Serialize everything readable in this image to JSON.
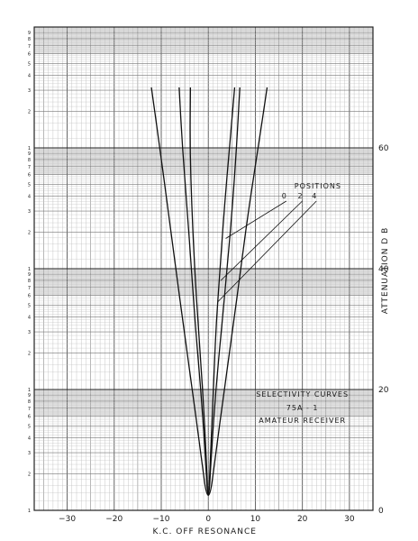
{
  "chart_data": {
    "type": "line",
    "title_lines": [
      "SELECTIVITY    CURVES",
      "75A - 1",
      "AMATEUR      RECEIVER"
    ],
    "xlabel": "K.C.   OFF    RESONANCE",
    "ylabel": "ATTENUATION      D B",
    "xlim": [
      -37,
      35
    ],
    "ylim": [
      0,
      60
    ],
    "x_ticks": [
      -30,
      -20,
      -10,
      0,
      10,
      20,
      30
    ],
    "x_tick_labels": [
      "−30",
      "−20",
      "−10",
      "0",
      "10",
      "20",
      "30"
    ],
    "y_ticks": [
      0,
      20,
      40,
      60
    ],
    "y_tick_labels": [
      "0",
      "20",
      "40",
      "60"
    ],
    "decade_labels": [
      "1",
      "2",
      "3",
      "4",
      "5",
      "6",
      "7",
      "8",
      "9"
    ],
    "grid": true,
    "legend_title": "POSITIONS",
    "series": [
      {
        "name": "0",
        "points": [
          [
            -3.8,
            70
          ],
          [
            -3.9,
            60
          ],
          [
            -3.5,
            50
          ],
          [
            -2.9,
            40
          ],
          [
            -2.1,
            30
          ],
          [
            -1.2,
            20
          ],
          [
            -0.5,
            10
          ],
          [
            0,
            0
          ],
          [
            0.5,
            10
          ],
          [
            1.1,
            20
          ],
          [
            1.6,
            30
          ],
          [
            2.5,
            40
          ],
          [
            3.4,
            50
          ],
          [
            4.5,
            60
          ],
          [
            5.6,
            70
          ]
        ]
      },
      {
        "name": "2",
        "points": [
          [
            -6.2,
            70
          ],
          [
            -5.5,
            60
          ],
          [
            -4.5,
            50
          ],
          [
            -3.6,
            40
          ],
          [
            -2.7,
            30
          ],
          [
            -1.6,
            20
          ],
          [
            -0.7,
            10
          ],
          [
            0,
            0
          ],
          [
            0.7,
            10
          ],
          [
            1.6,
            20
          ],
          [
            2.8,
            30
          ],
          [
            4,
            40
          ],
          [
            5.1,
            50
          ],
          [
            6,
            60
          ],
          [
            6.7,
            70
          ]
        ]
      },
      {
        "name": "4",
        "points": [
          [
            -12.1,
            70
          ],
          [
            -10.3,
            60
          ],
          [
            -8.6,
            50
          ],
          [
            -6.9,
            40
          ],
          [
            -5.2,
            30
          ],
          [
            -3.4,
            20
          ],
          [
            -1.7,
            10
          ],
          [
            0,
            0
          ],
          [
            1.7,
            10
          ],
          [
            3.4,
            20
          ],
          [
            5.2,
            30
          ],
          [
            6.9,
            40
          ],
          [
            8.6,
            50
          ],
          [
            10.6,
            60
          ],
          [
            12.5,
            70
          ]
        ]
      }
    ]
  }
}
